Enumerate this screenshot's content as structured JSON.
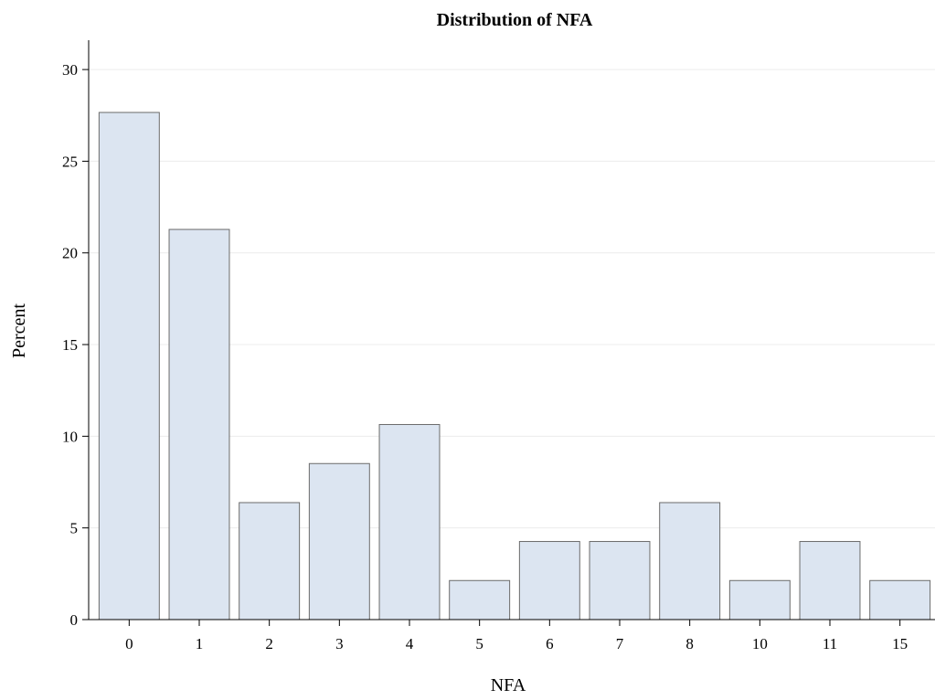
{
  "chart_data": {
    "type": "bar",
    "title": "Distribution of NFA",
    "xlabel": "NFA",
    "ylabel": "Percent",
    "categories": [
      "0",
      "1",
      "2",
      "3",
      "4",
      "5",
      "6",
      "7",
      "8",
      "10",
      "11",
      "15"
    ],
    "values": [
      27.66,
      21.28,
      6.38,
      8.51,
      10.64,
      2.13,
      4.26,
      4.26,
      6.38,
      2.13,
      4.26,
      2.13
    ],
    "ylim": [
      0,
      30
    ],
    "yticks": [
      0,
      5,
      10,
      15,
      20,
      25,
      30
    ],
    "grid": true,
    "colors": {
      "bar_fill": "#dce5f1",
      "bar_stroke": "#6b6b6b",
      "grid": "#ececec",
      "axis": "#000000"
    }
  }
}
